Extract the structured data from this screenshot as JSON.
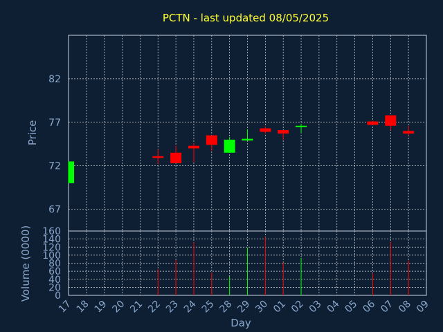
{
  "chart_data": {
    "type": "candlestick",
    "title": "PCTN - last updated 08/05/2025",
    "xlabel": "Day",
    "price_panel": {
      "ylabel": "Price",
      "yticks": [
        67,
        72,
        77,
        82
      ],
      "ylim": [
        64.5,
        87.0
      ]
    },
    "volume_panel": {
      "ylabel": "Volume (0000)",
      "yticks": [
        0,
        20,
        40,
        60,
        80,
        100,
        120,
        140,
        160
      ],
      "ylim": [
        0,
        160
      ]
    },
    "x_tick_labels": [
      "17",
      "18",
      "19",
      "20",
      "21",
      "22",
      "23",
      "24",
      "25",
      "28",
      "29",
      "30",
      "01",
      "02",
      "03",
      "04",
      "05",
      "06",
      "07",
      "08",
      "09"
    ],
    "colors": {
      "up": "#00ff00",
      "down": "#ff0000",
      "background": "#0f1f33",
      "title": "#ffff33",
      "axis": "#8aa8cc"
    },
    "candles": [
      {
        "x": "17",
        "open": 70.0,
        "high": 72.5,
        "low": 70.0,
        "close": 72.5,
        "volume": 0
      },
      {
        "x": "22",
        "open": 73.1,
        "high": 73.9,
        "low": 72.2,
        "close": 72.9,
        "volume": 65
      },
      {
        "x": "23",
        "open": 73.5,
        "high": 74.3,
        "low": 72.3,
        "close": 72.3,
        "volume": 88
      },
      {
        "x": "24",
        "open": 74.3,
        "high": 74.6,
        "low": 72.4,
        "close": 74.0,
        "volume": 132
      },
      {
        "x": "25",
        "open": 75.5,
        "high": 75.5,
        "low": 73.7,
        "close": 74.4,
        "volume": 57
      },
      {
        "x": "28",
        "open": 73.5,
        "high": 75.3,
        "low": 73.5,
        "close": 75.0,
        "volume": 47
      },
      {
        "x": "29",
        "open": 74.9,
        "high": 76.2,
        "low": 74.9,
        "close": 75.1,
        "volume": 118
      },
      {
        "x": "30",
        "open": 76.3,
        "high": 76.5,
        "low": 75.7,
        "close": 75.9,
        "volume": 145
      },
      {
        "x": "01",
        "open": 76.1,
        "high": 76.1,
        "low": 75.0,
        "close": 75.7,
        "volume": 82
      },
      {
        "x": "02",
        "open": 76.5,
        "high": 76.8,
        "low": 75.8,
        "close": 76.6,
        "volume": 93
      },
      {
        "x": "06",
        "open": 77.1,
        "high": 77.2,
        "low": 76.7,
        "close": 76.7,
        "volume": 55
      },
      {
        "x": "07",
        "open": 77.8,
        "high": 77.8,
        "low": 76.1,
        "close": 76.6,
        "volume": 133
      },
      {
        "x": "08",
        "open": 76.0,
        "high": 76.6,
        "low": 75.5,
        "close": 75.7,
        "volume": 87
      }
    ]
  }
}
